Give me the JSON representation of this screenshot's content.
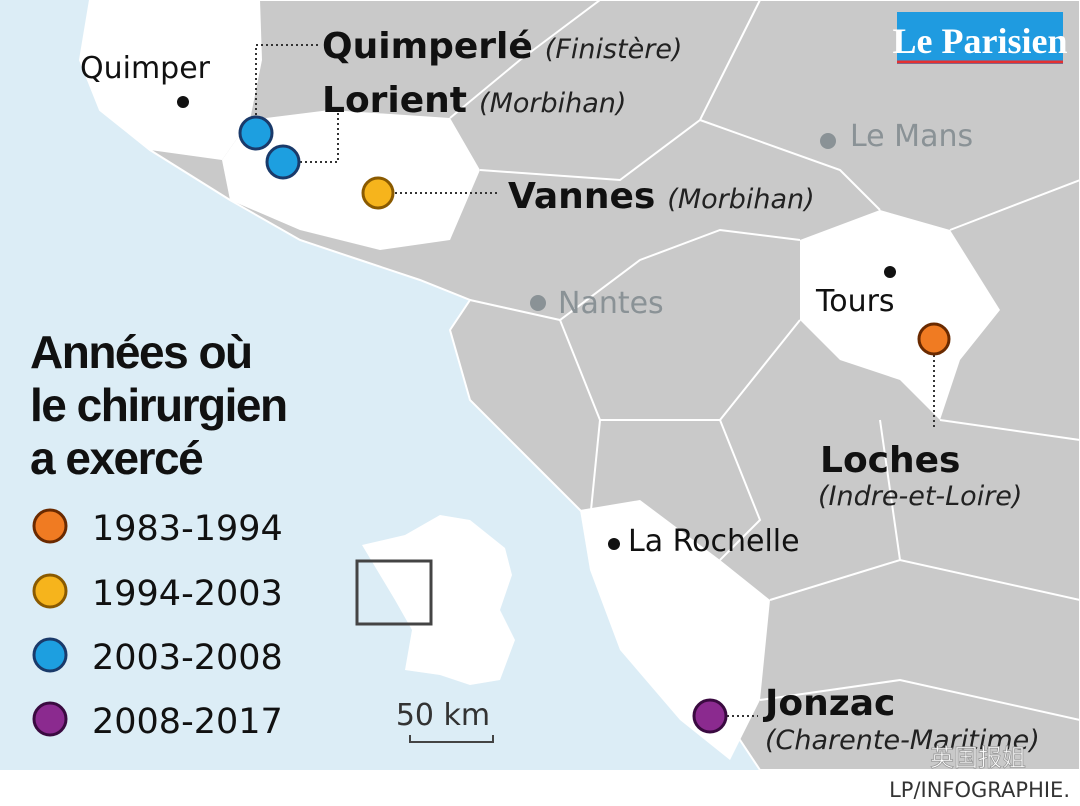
{
  "logo": "Le Parisien",
  "cities": [
    "Quimper",
    "Le Mans",
    "Nantes",
    "Tours",
    "La Rochelle"
  ],
  "sites": [
    {
      "name": "Quimperlé",
      "department": "(Finistère)"
    },
    {
      "name": "Lorient",
      "department": "(Morbihan)"
    },
    {
      "name": "Vannes",
      "department": "(Morbihan)"
    },
    {
      "name": "Loches",
      "department": "(Indre-et-Loire)"
    },
    {
      "name": "Jonzac",
      "department": "(Charente-Maritime)"
    }
  ],
  "legend": {
    "title": [
      "Années où",
      "le chirurgien",
      "a exercé"
    ],
    "items": [
      "1983-1994",
      "1994-2003",
      "2003-2008",
      "2008-2017"
    ]
  },
  "scale": "50 km",
  "watermark": "英国报姐",
  "credit": "LP/INFOGRAPHIE."
}
